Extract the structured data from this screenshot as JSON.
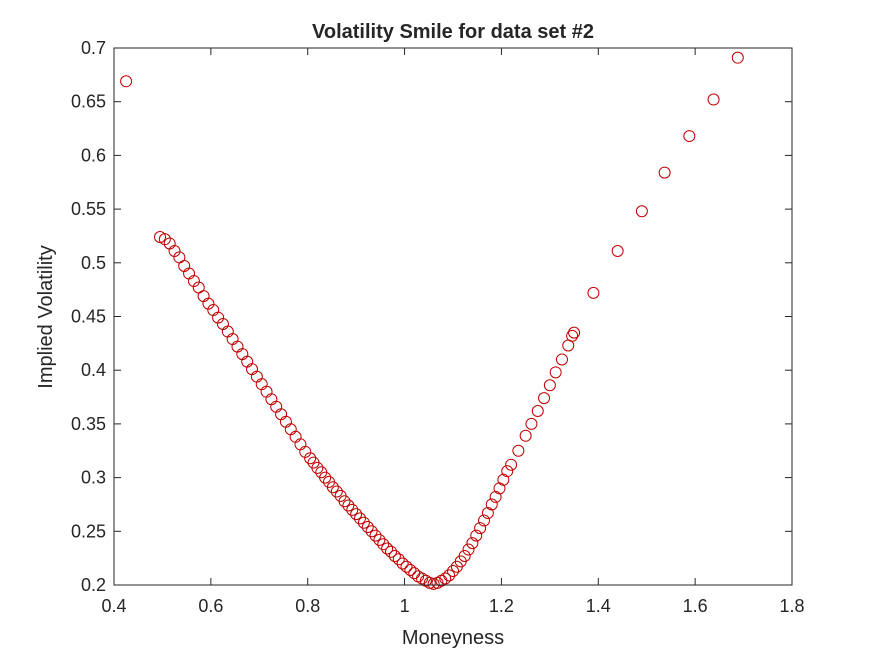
{
  "chart_data": {
    "type": "scatter",
    "title": "Volatility Smile for data set #2",
    "xlabel": "Moneyness",
    "ylabel": "Implied Volatility",
    "xlim": [
      0.4,
      1.8
    ],
    "ylim": [
      0.2,
      0.7
    ],
    "xticks": [
      "0.4",
      "0.6",
      "0.8",
      "1",
      "1.2",
      "1.4",
      "1.6",
      "1.8"
    ],
    "yticks": [
      "0.2",
      "0.25",
      "0.3",
      "0.35",
      "0.4",
      "0.45",
      "0.5",
      "0.55",
      "0.6",
      "0.65",
      "0.7"
    ],
    "grid": false,
    "legend": "none",
    "marker": "open-circle",
    "marker_color": "#C00000",
    "axis_color": "#262626",
    "series": [
      {
        "points": [
          [
            0.425,
            0.669
          ],
          [
            0.495,
            0.524
          ],
          [
            0.505,
            0.522
          ],
          [
            0.515,
            0.518
          ],
          [
            0.525,
            0.511
          ],
          [
            0.535,
            0.505
          ],
          [
            0.545,
            0.497
          ],
          [
            0.555,
            0.49
          ],
          [
            0.565,
            0.483
          ],
          [
            0.575,
            0.477
          ],
          [
            0.585,
            0.469
          ],
          [
            0.595,
            0.462
          ],
          [
            0.605,
            0.456
          ],
          [
            0.615,
            0.449
          ],
          [
            0.625,
            0.443
          ],
          [
            0.635,
            0.436
          ],
          [
            0.645,
            0.429
          ],
          [
            0.655,
            0.422
          ],
          [
            0.665,
            0.415
          ],
          [
            0.675,
            0.408
          ],
          [
            0.685,
            0.401
          ],
          [
            0.695,
            0.394
          ],
          [
            0.705,
            0.387
          ],
          [
            0.715,
            0.38
          ],
          [
            0.725,
            0.373
          ],
          [
            0.735,
            0.366
          ],
          [
            0.745,
            0.359
          ],
          [
            0.755,
            0.352
          ],
          [
            0.765,
            0.345
          ],
          [
            0.775,
            0.338
          ],
          [
            0.785,
            0.331
          ],
          [
            0.795,
            0.324
          ],
          [
            0.805,
            0.318
          ],
          [
            0.812,
            0.314
          ],
          [
            0.82,
            0.309
          ],
          [
            0.828,
            0.305
          ],
          [
            0.836,
            0.3
          ],
          [
            0.844,
            0.296
          ],
          [
            0.852,
            0.291
          ],
          [
            0.86,
            0.287
          ],
          [
            0.868,
            0.283
          ],
          [
            0.876,
            0.278
          ],
          [
            0.884,
            0.274
          ],
          [
            0.892,
            0.27
          ],
          [
            0.9,
            0.266
          ],
          [
            0.908,
            0.262
          ],
          [
            0.916,
            0.258
          ],
          [
            0.924,
            0.254
          ],
          [
            0.932,
            0.25
          ],
          [
            0.94,
            0.246
          ],
          [
            0.948,
            0.242
          ],
          [
            0.956,
            0.238
          ],
          [
            0.964,
            0.234
          ],
          [
            0.972,
            0.231
          ],
          [
            0.98,
            0.227
          ],
          [
            0.988,
            0.224
          ],
          [
            0.996,
            0.22
          ],
          [
            1.004,
            0.217
          ],
          [
            1.012,
            0.214
          ],
          [
            1.02,
            0.211
          ],
          [
            1.028,
            0.208
          ],
          [
            1.036,
            0.206
          ],
          [
            1.044,
            0.204
          ],
          [
            1.052,
            0.202
          ],
          [
            1.06,
            0.201
          ],
          [
            1.068,
            0.202
          ],
          [
            1.076,
            0.204
          ],
          [
            1.084,
            0.206
          ],
          [
            1.092,
            0.209
          ],
          [
            1.1,
            0.213
          ],
          [
            1.108,
            0.217
          ],
          [
            1.116,
            0.222
          ],
          [
            1.124,
            0.227
          ],
          [
            1.132,
            0.233
          ],
          [
            1.14,
            0.239
          ],
          [
            1.148,
            0.246
          ],
          [
            1.156,
            0.253
          ],
          [
            1.164,
            0.26
          ],
          [
            1.172,
            0.267
          ],
          [
            1.18,
            0.275
          ],
          [
            1.188,
            0.282
          ],
          [
            1.196,
            0.29
          ],
          [
            1.204,
            0.298
          ],
          [
            1.212,
            0.306
          ],
          [
            1.22,
            0.312
          ],
          [
            1.235,
            0.325
          ],
          [
            1.25,
            0.339
          ],
          [
            1.262,
            0.35
          ],
          [
            1.275,
            0.362
          ],
          [
            1.288,
            0.374
          ],
          [
            1.3,
            0.386
          ],
          [
            1.312,
            0.398
          ],
          [
            1.325,
            0.41
          ],
          [
            1.338,
            0.423
          ],
          [
            1.346,
            0.432
          ],
          [
            1.35,
            0.435
          ],
          [
            1.39,
            0.472
          ],
          [
            1.44,
            0.511
          ],
          [
            1.49,
            0.548
          ],
          [
            1.537,
            0.584
          ],
          [
            1.588,
            0.618
          ],
          [
            1.638,
            0.652
          ],
          [
            1.688,
            0.691
          ]
        ]
      }
    ]
  }
}
